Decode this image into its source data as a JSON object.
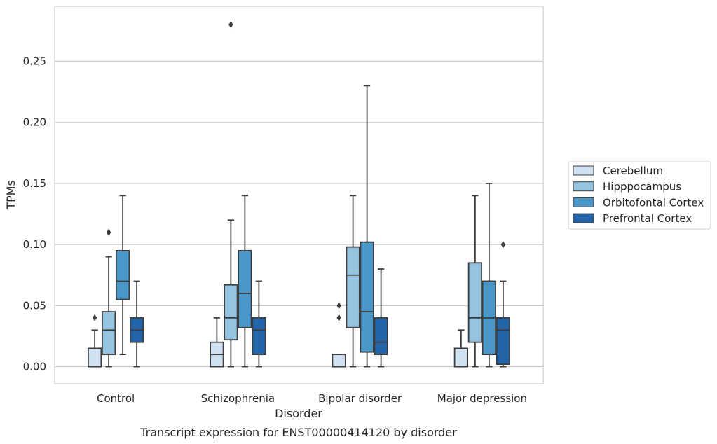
{
  "chart_data": {
    "type": "box",
    "xlabel": "Disorder",
    "ylabel": "TPMs",
    "caption": "Transcript expression for ENST00000414120 by disorder",
    "ylim": [
      -0.014,
      0.295
    ],
    "yticks": [
      0.0,
      0.05,
      0.1,
      0.15,
      0.2,
      0.25
    ],
    "ytick_labels": [
      "0.00",
      "0.05",
      "0.10",
      "0.15",
      "0.20",
      "0.25"
    ],
    "grid": "horizontal",
    "legend_position": "right",
    "categories": [
      "Control",
      "Schizophrenia",
      "Bipolar disorder",
      "Major depression"
    ],
    "series": [
      {
        "name": "Cerebellum",
        "color": "#d0e1f2",
        "boxes": [
          {
            "q1": 0.0,
            "median": 0.0,
            "q3": 0.015,
            "whisker_low": 0.0,
            "whisker_high": 0.03,
            "outliers": [
              0.04
            ]
          },
          {
            "q1": 0.0,
            "median": 0.01,
            "q3": 0.02,
            "whisker_low": 0.0,
            "whisker_high": 0.04,
            "outliers": []
          },
          {
            "q1": 0.0,
            "median": 0.0,
            "q3": 0.01,
            "whisker_low": 0.0,
            "whisker_high": 0.01,
            "outliers": [
              0.04,
              0.05
            ]
          },
          {
            "q1": 0.0,
            "median": 0.0,
            "q3": 0.015,
            "whisker_low": 0.0,
            "whisker_high": 0.03,
            "outliers": []
          }
        ]
      },
      {
        "name": "Hipppocampus",
        "color": "#94c4df",
        "boxes": [
          {
            "q1": 0.01,
            "median": 0.03,
            "q3": 0.045,
            "whisker_low": 0.0,
            "whisker_high": 0.09,
            "outliers": [
              0.11
            ]
          },
          {
            "q1": 0.022,
            "median": 0.04,
            "q3": 0.067,
            "whisker_low": 0.0,
            "whisker_high": 0.12,
            "outliers": [
              0.28
            ]
          },
          {
            "q1": 0.032,
            "median": 0.075,
            "q3": 0.098,
            "whisker_low": 0.0,
            "whisker_high": 0.14,
            "outliers": []
          },
          {
            "q1": 0.02,
            "median": 0.04,
            "q3": 0.085,
            "whisker_low": 0.0,
            "whisker_high": 0.14,
            "outliers": []
          }
        ]
      },
      {
        "name": "Orbitofontal Cortex",
        "color": "#4a98c9",
        "boxes": [
          {
            "q1": 0.055,
            "median": 0.07,
            "q3": 0.095,
            "whisker_low": 0.01,
            "whisker_high": 0.14,
            "outliers": []
          },
          {
            "q1": 0.032,
            "median": 0.06,
            "q3": 0.095,
            "whisker_low": 0.0,
            "whisker_high": 0.14,
            "outliers": []
          },
          {
            "q1": 0.012,
            "median": 0.045,
            "q3": 0.102,
            "whisker_low": 0.0,
            "whisker_high": 0.23,
            "outliers": []
          },
          {
            "q1": 0.01,
            "median": 0.04,
            "q3": 0.07,
            "whisker_low": 0.0,
            "whisker_high": 0.15,
            "outliers": []
          }
        ]
      },
      {
        "name": "Prefrontal Cortex",
        "color": "#2465a9",
        "boxes": [
          {
            "q1": 0.02,
            "median": 0.03,
            "q3": 0.04,
            "whisker_low": 0.0,
            "whisker_high": 0.07,
            "outliers": []
          },
          {
            "q1": 0.01,
            "median": 0.03,
            "q3": 0.04,
            "whisker_low": 0.0,
            "whisker_high": 0.07,
            "outliers": []
          },
          {
            "q1": 0.01,
            "median": 0.02,
            "q3": 0.04,
            "whisker_low": 0.0,
            "whisker_high": 0.08,
            "outliers": []
          },
          {
            "q1": 0.002,
            "median": 0.03,
            "q3": 0.04,
            "whisker_low": 0.0,
            "whisker_high": 0.07,
            "outliers": [
              0.1
            ]
          }
        ]
      }
    ]
  }
}
